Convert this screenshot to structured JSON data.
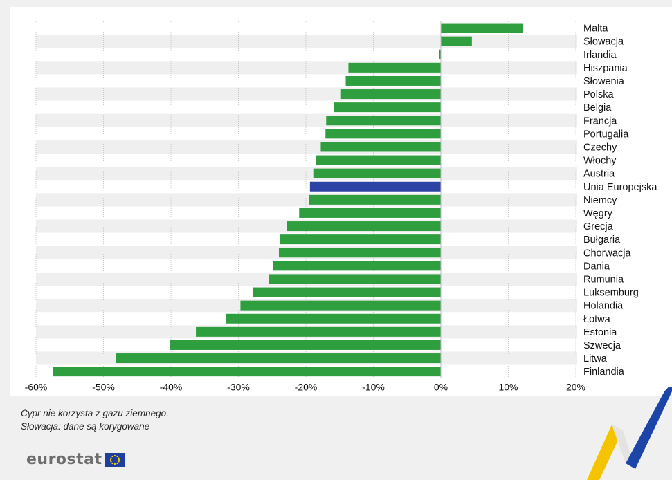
{
  "chart_data": {
    "type": "bar",
    "orientation": "horizontal",
    "title": "",
    "xlabel": "",
    "ylabel": "",
    "categories": [
      "Malta",
      "Słowacja",
      "Irlandia",
      "Hiszpania",
      "Słowenia",
      "Polska",
      "Belgia",
      "Francja",
      "Portugalia",
      "Czechy",
      "Włochy",
      "Austria",
      "Unia Europejska",
      "Niemcy",
      "Węgry",
      "Grecja",
      "Bułgaria",
      "Chorwacja",
      "Dania",
      "Rumunia",
      "Luksemburg",
      "Holandia",
      "Łotwa",
      "Estonia",
      "Szwecja",
      "Litwa",
      "Finlandia"
    ],
    "values": [
      12.2,
      4.6,
      -0.3,
      -13.7,
      -14.1,
      -14.8,
      -15.9,
      -17.0,
      -17.1,
      -17.8,
      -18.5,
      -18.9,
      -19.4,
      -19.5,
      -21.0,
      -22.8,
      -23.8,
      -24.0,
      -24.9,
      -25.5,
      -27.9,
      -29.7,
      -31.9,
      -36.3,
      -40.1,
      -48.2,
      -57.5
    ],
    "highlight": "Unia Europejska",
    "xlim": [
      -60,
      20
    ],
    "xticks": [
      -60,
      -50,
      -40,
      -30,
      -20,
      -10,
      0,
      10,
      20
    ],
    "xtick_labels": [
      "-60%",
      "-50%",
      "-40%",
      "-30%",
      "-20%",
      "-10%",
      "0%",
      "10%",
      "20%"
    ],
    "grid": "vertical-dotted",
    "colors": {
      "bar": "#2e9e3e",
      "highlight": "#2b44a6",
      "stripe": "#efefef"
    }
  },
  "footnotes": [
    "Cypr nie korzysta z gazu ziemnego.",
    "Słowacja: dane są korygowane"
  ],
  "logo": {
    "text": "eurostat",
    "icon": "eu-flag-icon"
  },
  "decoration": {
    "icon": "eurostat-swoosh-icon",
    "colors": [
      "#f5c400",
      "#1b45a8"
    ]
  }
}
